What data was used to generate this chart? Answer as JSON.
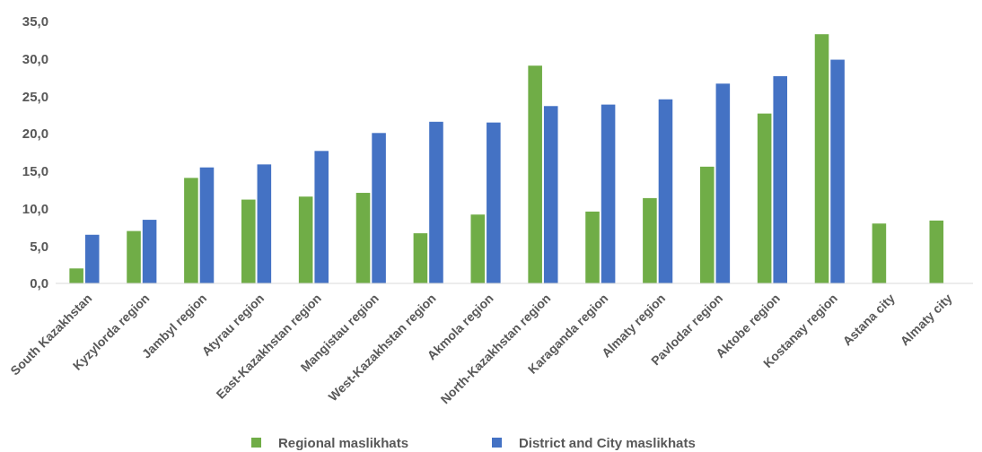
{
  "chart_data": {
    "type": "bar",
    "categories": [
      "South Kazakhstan",
      "Kyzylorda region",
      "Jambyl region",
      "Atyrau region",
      "East-Kazakhstan region",
      "Mangistau region",
      "West-Kazakhstan region",
      "Akmola region",
      "North-Kazakhstan region",
      "Karaganda region",
      "Almaty region",
      "Pavlodar region",
      "Aktobe region",
      "Kostanay region",
      "Astana city",
      "Almaty city"
    ],
    "series": [
      {
        "name": "Regional maslikhats",
        "color": "#70ad47",
        "values": [
          2.0,
          7.0,
          14.1,
          11.2,
          11.6,
          12.1,
          6.7,
          9.2,
          29.1,
          9.6,
          11.4,
          15.6,
          22.7,
          33.3,
          8.0,
          8.4
        ]
      },
      {
        "name": "District and City maslikhats",
        "color": "#4472c4",
        "values": [
          6.5,
          8.5,
          15.5,
          15.9,
          17.7,
          20.1,
          21.6,
          21.5,
          23.7,
          23.9,
          24.6,
          26.7,
          27.7,
          29.9,
          null,
          null
        ]
      }
    ],
    "ylim": [
      0,
      35
    ],
    "yticks": [
      {
        "value": 0,
        "label": "0,0"
      },
      {
        "value": 5,
        "label": "5,0"
      },
      {
        "value": 10,
        "label": "10,0"
      },
      {
        "value": 15,
        "label": "15,0"
      },
      {
        "value": 20,
        "label": "20,0"
      },
      {
        "value": 25,
        "label": "25,0"
      },
      {
        "value": 30,
        "label": "30,0"
      },
      {
        "value": 35,
        "label": "35,0"
      }
    ],
    "grid": false,
    "legend": "bottom"
  }
}
